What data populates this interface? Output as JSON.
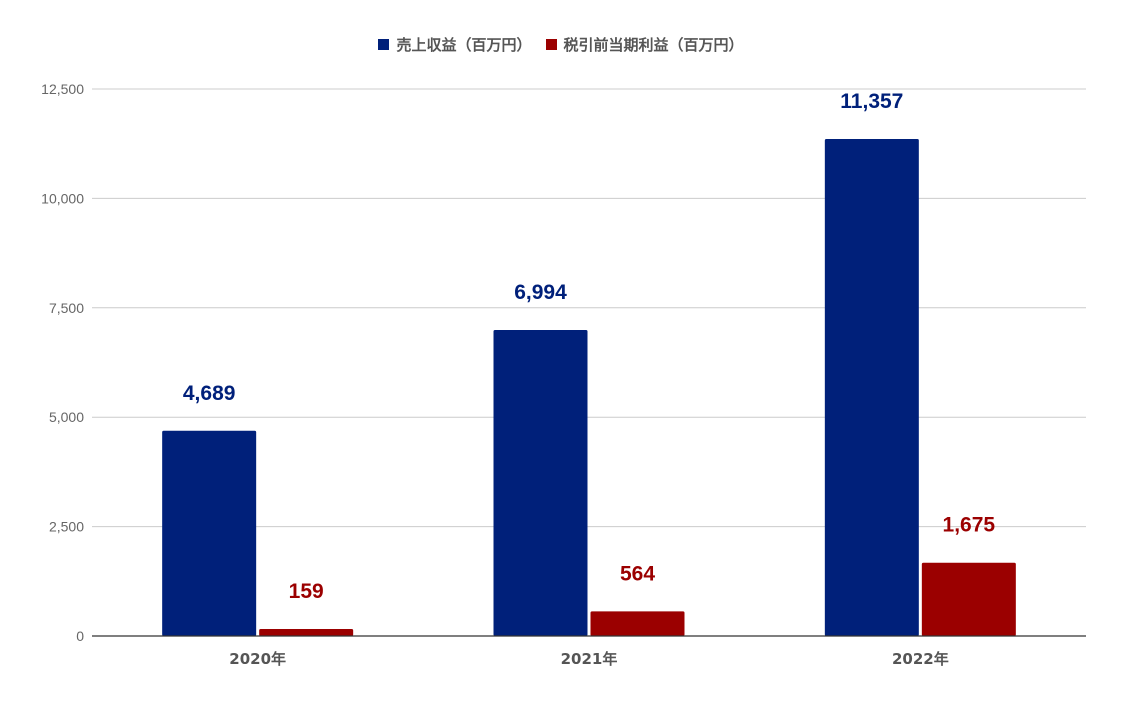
{
  "chart_data": {
    "type": "bar",
    "categories": [
      "2020年",
      "2021年",
      "2022年"
    ],
    "series": [
      {
        "name": "売上収益（百万円）",
        "values": [
          4689,
          6994,
          11357
        ],
        "color": "#00207a",
        "labels": [
          "4,689",
          "6,994",
          "11,357"
        ]
      },
      {
        "name": "税引前当期利益（百万円）",
        "values": [
          159,
          564,
          1675
        ],
        "color": "#9b0000",
        "labels": [
          "159",
          "564",
          "1,675"
        ]
      }
    ],
    "ylim": [
      0,
      12500
    ],
    "yticks": [
      0,
      2500,
      5000,
      7500,
      10000,
      12500
    ],
    "ytick_labels": [
      "0",
      "2,500",
      "5,000",
      "7,500",
      "10,000",
      "12,500"
    ],
    "grid": true,
    "legend_position": "top-center",
    "xlabel": "",
    "ylabel": ""
  }
}
